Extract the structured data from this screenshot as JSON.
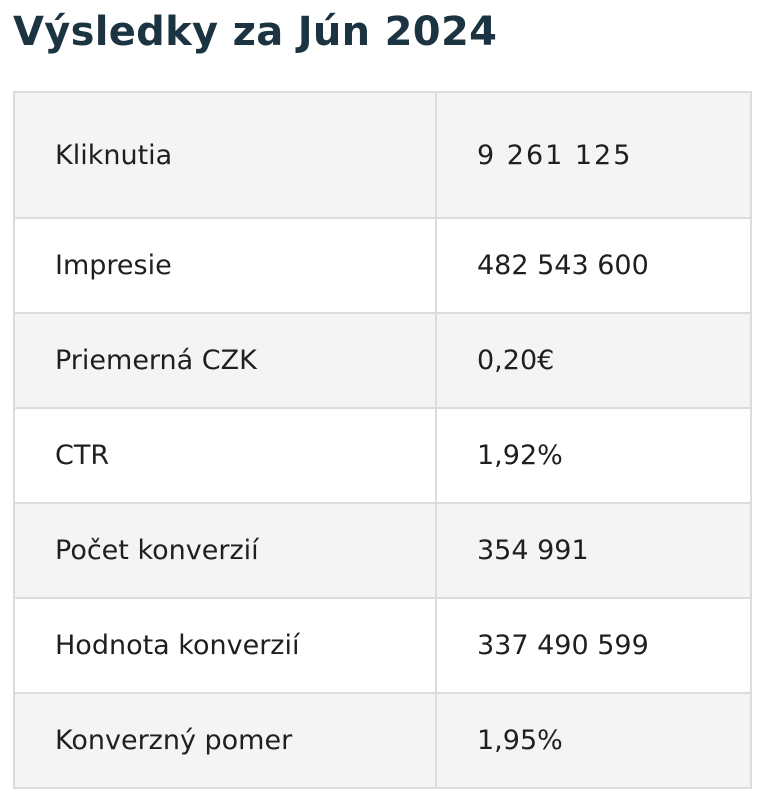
{
  "page": {
    "title": "Výsledky za Jún 2024"
  },
  "table": {
    "rows": [
      {
        "label": "Kliknutia",
        "value": "9 261 125"
      },
      {
        "label": "Impresie",
        "value": "482 543 600"
      },
      {
        "label": "Priemerná CZK",
        "value": "0,20€"
      },
      {
        "label": "CTR",
        "value": "1,92%"
      },
      {
        "label": "Počet konverzií",
        "value": "354 991"
      },
      {
        "label": "Hodnota konverzií",
        "value": "337 490 599"
      },
      {
        "label": "Konverzný pomer",
        "value": "1,95%"
      }
    ]
  },
  "colors": {
    "title": "#1c3442",
    "border": "#dcdcdc",
    "row_alt_bg": "#f4f4f4",
    "row_bg": "#ffffff"
  }
}
